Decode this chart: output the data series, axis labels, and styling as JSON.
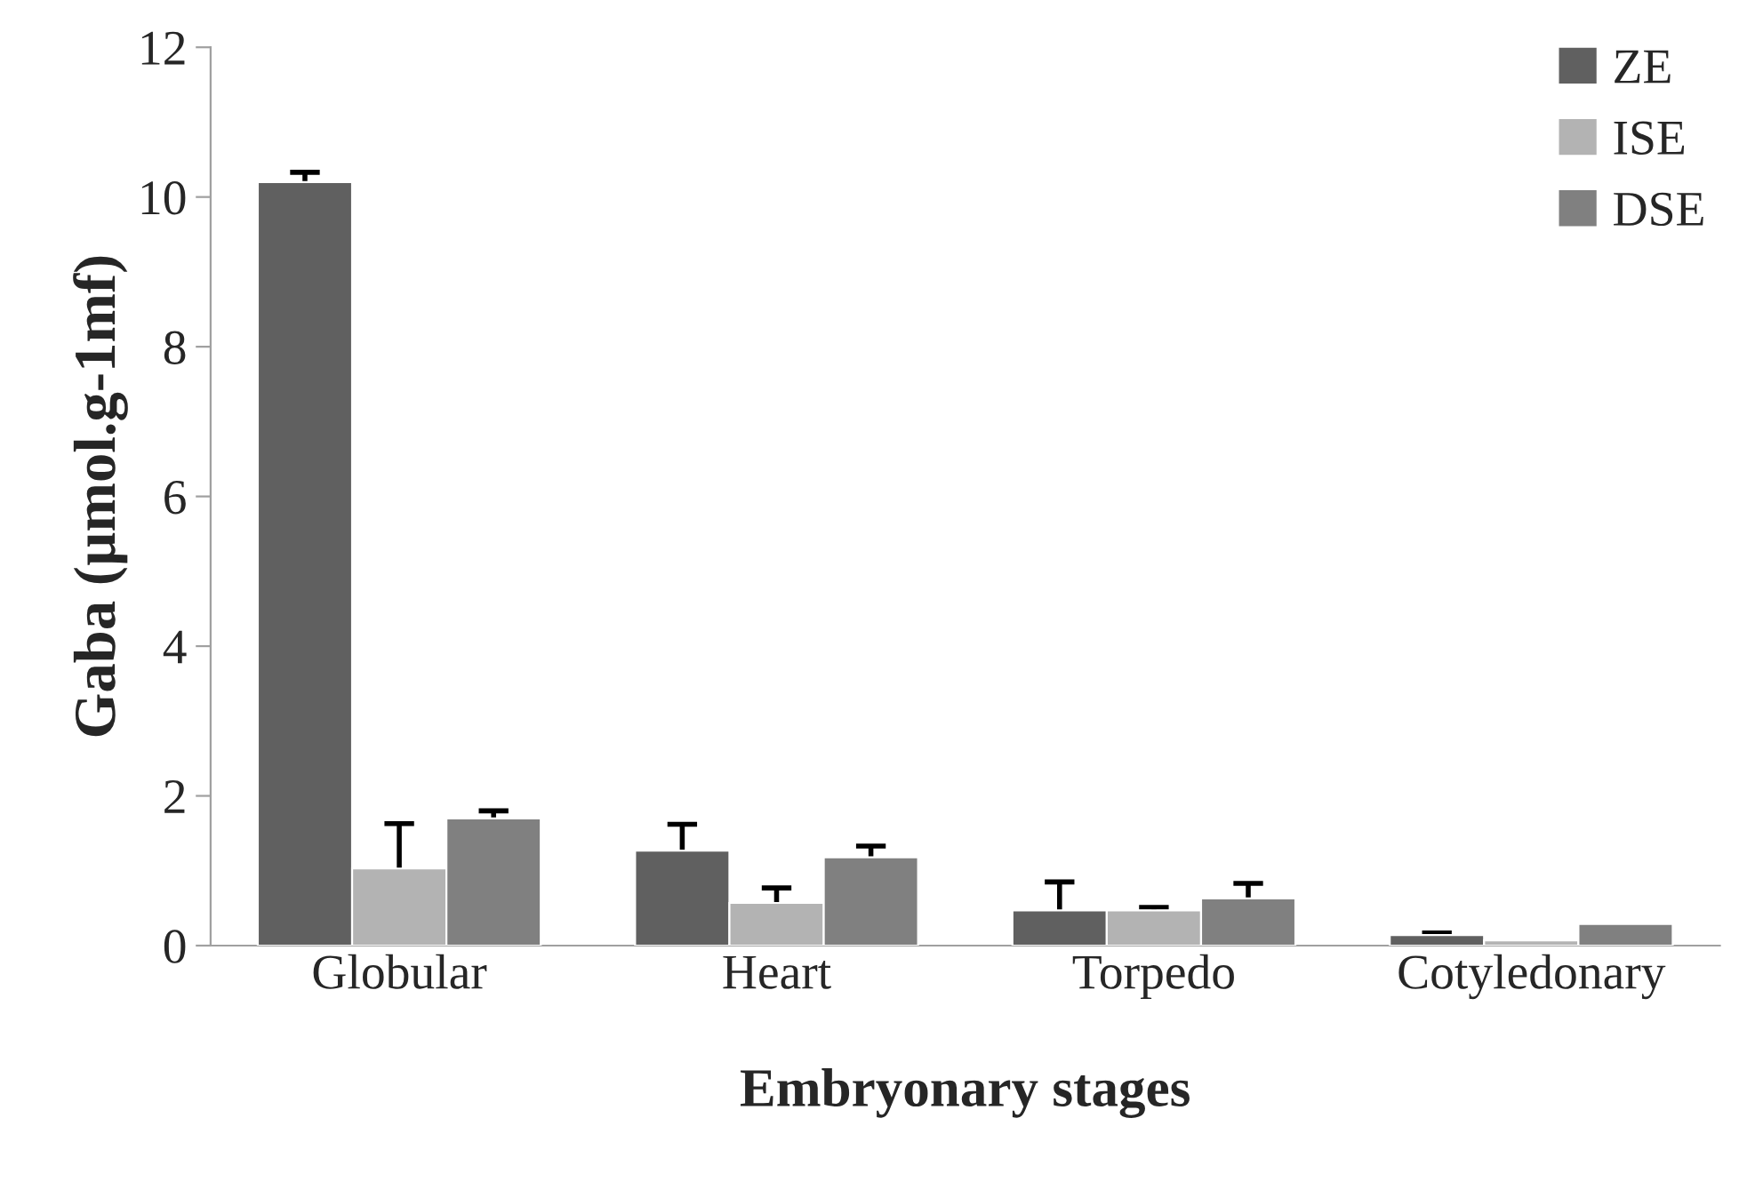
{
  "chart_data": {
    "type": "bar",
    "xlabel": "Embryonary stages",
    "ylabel": "Gaba (µmol.g-1mf)",
    "categories": [
      "Globular",
      "Heart",
      "Torpedo",
      "Cotyledonary"
    ],
    "series": [
      {
        "name": "ZE",
        "color": "#606060",
        "values": [
          10.2,
          1.27,
          0.47,
          0.14
        ],
        "errors": [
          0.13,
          0.35,
          0.38,
          0.03
        ]
      },
      {
        "name": "ISE",
        "color": "#b3b3b3",
        "values": [
          1.03,
          0.57,
          0.47,
          0.07
        ],
        "errors": [
          0.6,
          0.2,
          0.04,
          null
        ]
      },
      {
        "name": "DSE",
        "color": "#808080",
        "values": [
          1.7,
          1.18,
          0.63,
          0.29
        ],
        "errors": [
          0.1,
          0.15,
          0.2,
          null
        ]
      }
    ],
    "ylim": [
      0,
      12
    ],
    "yticks": [
      0,
      2,
      4,
      6,
      8,
      10,
      12
    ],
    "grid": false,
    "legend": "top right"
  }
}
